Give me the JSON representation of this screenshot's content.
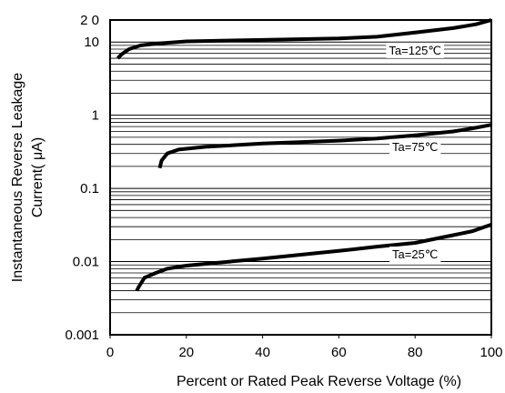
{
  "chart_data": {
    "type": "line",
    "title": "",
    "xlabel": "Percent or Rated Peak Reverse Voltage (%)",
    "ylabel_line1": "Instantaneous Reverse Leakage",
    "ylabel_line2": "Current( μA)",
    "xlim": [
      0,
      100
    ],
    "ylim": [
      0.001,
      20
    ],
    "yscale": "log",
    "grid": "horizontal minor log gridlines",
    "x_ticks": [
      {
        "value": 0,
        "label": "0"
      },
      {
        "value": 20,
        "label": "20"
      },
      {
        "value": 40,
        "label": "40"
      },
      {
        "value": 60,
        "label": "60"
      },
      {
        "value": 80,
        "label": "80"
      },
      {
        "value": 100,
        "label": "100"
      }
    ],
    "y_ticks": [
      {
        "value": 20,
        "label": "2 0"
      },
      {
        "value": 10,
        "label": "10"
      },
      {
        "value": 1,
        "label": "1"
      },
      {
        "value": 0.1,
        "label": "0.1"
      },
      {
        "value": 0.01,
        "label": "0.01"
      },
      {
        "value": 0.001,
        "label": "0.001"
      }
    ],
    "series": [
      {
        "name": "Ta=125℃",
        "points": [
          [
            2,
            6
          ],
          [
            3,
            6.8
          ],
          [
            5,
            8
          ],
          [
            8,
            9
          ],
          [
            12,
            9.5
          ],
          [
            20,
            10.2
          ],
          [
            40,
            10.7
          ],
          [
            60,
            11.2
          ],
          [
            70,
            11.8
          ],
          [
            80,
            13.5
          ],
          [
            90,
            15.5
          ],
          [
            96,
            17.5
          ],
          [
            100,
            20
          ]
        ]
      },
      {
        "name": "Ta=75℃",
        "points": [
          [
            13,
            0.19
          ],
          [
            13.5,
            0.24
          ],
          [
            15,
            0.3
          ],
          [
            18,
            0.34
          ],
          [
            25,
            0.37
          ],
          [
            40,
            0.41
          ],
          [
            60,
            0.45
          ],
          [
            70,
            0.48
          ],
          [
            80,
            0.53
          ],
          [
            90,
            0.6
          ],
          [
            95,
            0.66
          ],
          [
            100,
            0.74
          ]
        ]
      },
      {
        "name": "Ta=25℃",
        "points": [
          [
            7,
            0.004
          ],
          [
            7.5,
            0.0045
          ],
          [
            9,
            0.006
          ],
          [
            12,
            0.007
          ],
          [
            15,
            0.008
          ],
          [
            20,
            0.0088
          ],
          [
            40,
            0.011
          ],
          [
            60,
            0.014
          ],
          [
            70,
            0.016
          ],
          [
            80,
            0.018
          ],
          [
            90,
            0.023
          ],
          [
            95,
            0.026
          ],
          [
            100,
            0.032
          ]
        ]
      }
    ]
  }
}
